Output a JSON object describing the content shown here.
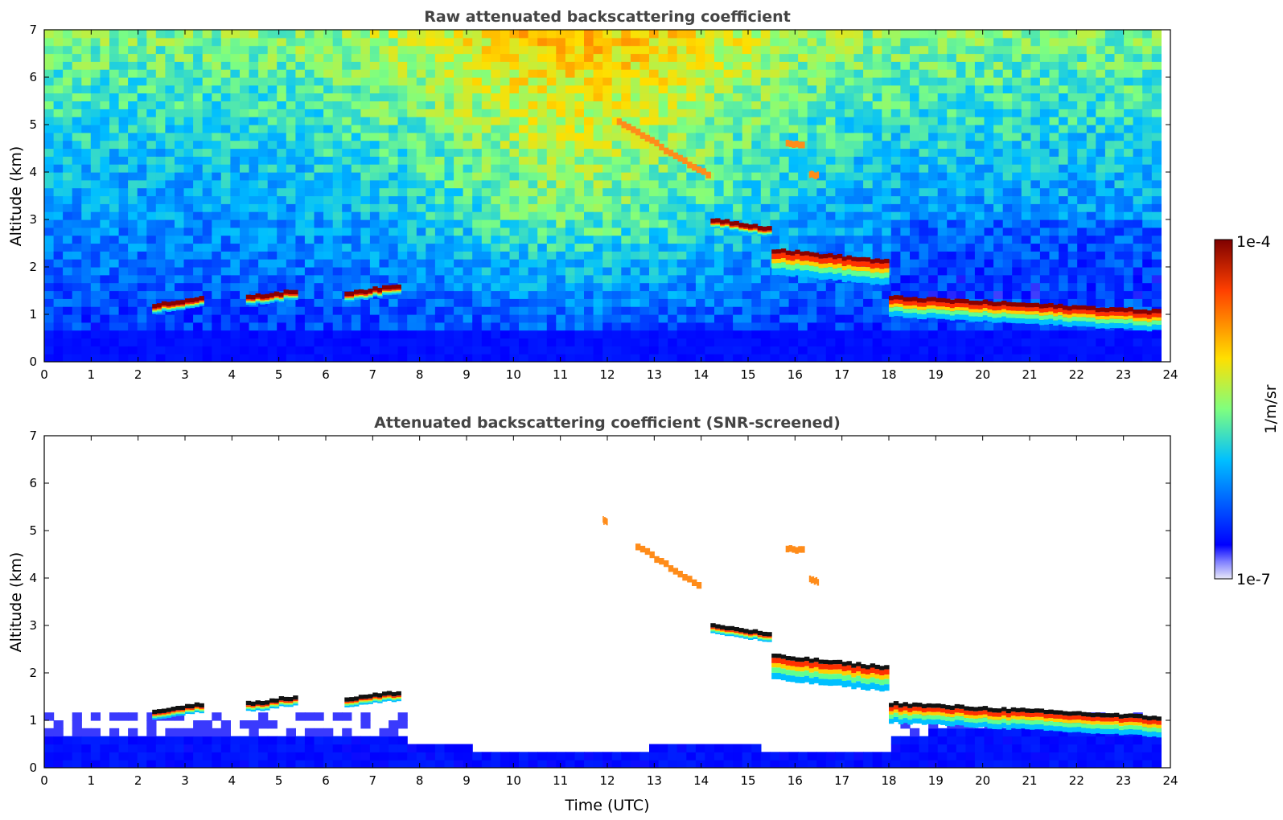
{
  "chart_data": [
    {
      "type": "heatmap",
      "title": "Raw attenuated backscattering coefficient",
      "xlabel": "",
      "ylabel": "Altitude (km)",
      "xlim": [
        0,
        24
      ],
      "ylim": [
        0,
        7
      ],
      "xticks": [
        "0",
        "1",
        "2",
        "3",
        "4",
        "5",
        "6",
        "7",
        "8",
        "9",
        "10",
        "11",
        "12",
        "13",
        "14",
        "15",
        "16",
        "17",
        "18",
        "19",
        "20",
        "21",
        "22",
        "23",
        "24"
      ],
      "yticks": [
        "0",
        "1",
        "2",
        "3",
        "4",
        "5",
        "6",
        "7"
      ],
      "data_extent_x": [
        0,
        23.8
      ],
      "background": "noisy; increasing with altitude and toward midday",
      "features": [
        {
          "kind": "cloud",
          "t0": 2.3,
          "t1": 3.4,
          "z0": 1.15,
          "z1": 1.3
        },
        {
          "kind": "cloud",
          "t0": 4.3,
          "t1": 5.4,
          "z0": 1.3,
          "z1": 1.45
        },
        {
          "kind": "cloud",
          "t0": 6.4,
          "t1": 7.6,
          "z0": 1.4,
          "z1": 1.55
        },
        {
          "kind": "cloud",
          "t0": 14.2,
          "t1": 15.5,
          "z0": 2.95,
          "z1": 2.75
        },
        {
          "kind": "cloud",
          "t0": 15.5,
          "t1": 18.0,
          "z0": 2.3,
          "z1": 2.05
        },
        {
          "kind": "cloud",
          "t0": 18.0,
          "t1": 23.8,
          "z0": 1.3,
          "z1": 1.0
        },
        {
          "kind": "aerosol",
          "t0": 12.2,
          "t1": 14.2,
          "z0": 5.0,
          "z1": 3.8
        },
        {
          "kind": "aerosol",
          "t0": 15.8,
          "t1": 16.2,
          "z0": 4.55,
          "z1": 4.5
        },
        {
          "kind": "aerosol",
          "t0": 16.3,
          "t1": 16.5,
          "z0": 3.9,
          "z1": 3.85
        }
      ]
    },
    {
      "type": "heatmap",
      "title": "Attenuated backscattering coefficient (SNR-screened)",
      "xlabel": "Time (UTC)",
      "ylabel": "Altitude (km)",
      "xlim": [
        0,
        24
      ],
      "ylim": [
        0,
        7
      ],
      "xticks": [
        "0",
        "1",
        "2",
        "3",
        "4",
        "5",
        "6",
        "7",
        "8",
        "9",
        "10",
        "11",
        "12",
        "13",
        "14",
        "15",
        "16",
        "17",
        "18",
        "19",
        "20",
        "21",
        "22",
        "23",
        "24"
      ],
      "yticks": [
        "0",
        "1",
        "2",
        "3",
        "4",
        "5",
        "6",
        "7"
      ],
      "data_extent_x": [
        0,
        23.8
      ],
      "background": "screened (white) except boundary layer",
      "features": [
        {
          "kind": "cloud",
          "t0": 2.3,
          "t1": 3.4,
          "z0": 1.15,
          "z1": 1.3
        },
        {
          "kind": "cloud",
          "t0": 4.3,
          "t1": 5.4,
          "z0": 1.3,
          "z1": 1.45
        },
        {
          "kind": "cloud",
          "t0": 6.4,
          "t1": 7.6,
          "z0": 1.4,
          "z1": 1.55
        },
        {
          "kind": "cloud",
          "t0": 14.2,
          "t1": 15.5,
          "z0": 2.95,
          "z1": 2.75
        },
        {
          "kind": "cloud",
          "t0": 15.5,
          "t1": 18.0,
          "z0": 2.3,
          "z1": 2.05
        },
        {
          "kind": "cloud",
          "t0": 18.0,
          "t1": 23.8,
          "z0": 1.3,
          "z1": 1.0
        },
        {
          "kind": "aerosol",
          "t0": 12.6,
          "t1": 14.0,
          "z0": 4.6,
          "z1": 3.7
        },
        {
          "kind": "aerosol",
          "t0": 11.9,
          "t1": 12.0,
          "z0": 5.15,
          "z1": 5.1
        },
        {
          "kind": "aerosol",
          "t0": 15.8,
          "t1": 16.2,
          "z0": 4.55,
          "z1": 4.5
        },
        {
          "kind": "aerosol",
          "t0": 16.3,
          "t1": 16.5,
          "z0": 3.9,
          "z1": 3.85
        }
      ]
    }
  ],
  "colorbar": {
    "label": "1/m/sr",
    "max_label": "1e-4",
    "min_label": "1e-7",
    "colormap": "jet",
    "colors": [
      "#e8e8f8",
      "#0000ff",
      "#00bfff",
      "#7fff7f",
      "#ffdf00",
      "#ff4000",
      "#7f0000"
    ]
  }
}
